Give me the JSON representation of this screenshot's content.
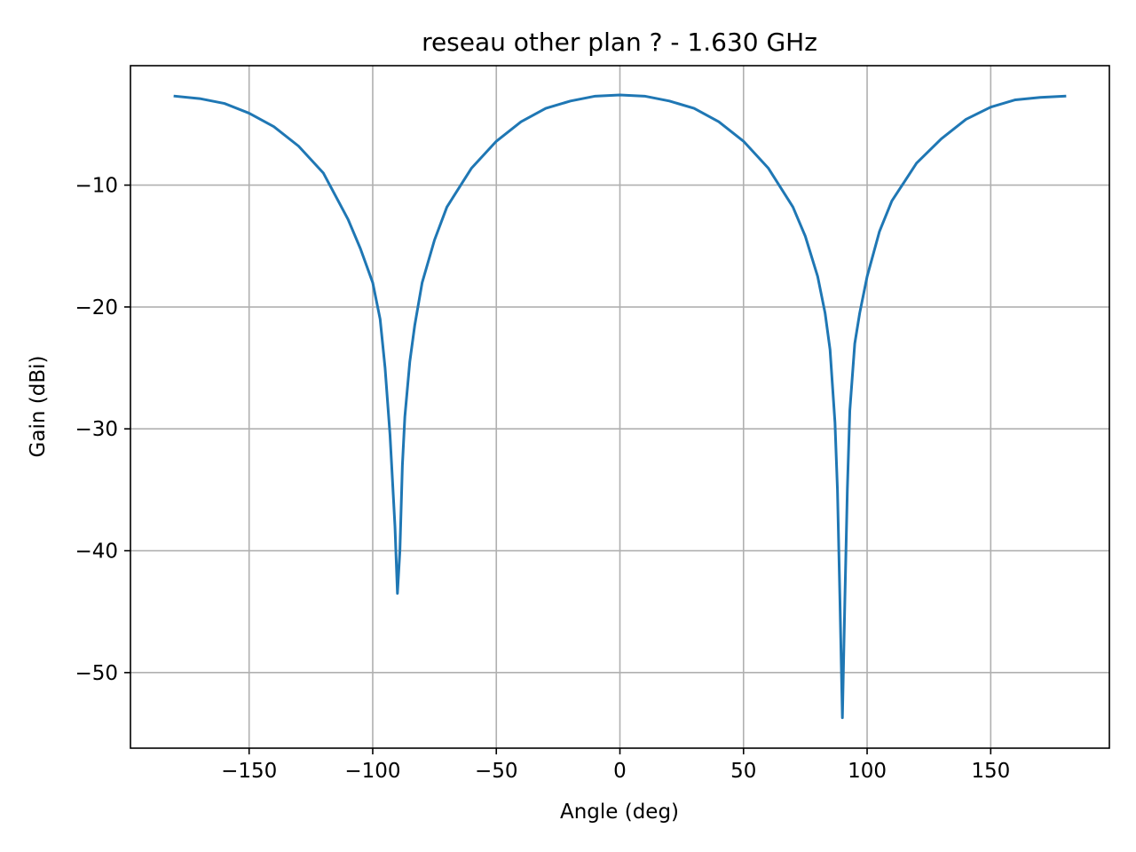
{
  "chart_data": {
    "type": "line",
    "title": "reseau other plan ? - 1.630 GHz",
    "xlabel": "Angle (deg)",
    "ylabel": "Gain (dBi)",
    "xlim": [
      -198,
      198
    ],
    "ylim": [
      -56.2,
      -0.2
    ],
    "x_ticks": [
      -150,
      -100,
      -50,
      0,
      50,
      100,
      150
    ],
    "x_tick_labels": [
      "−150",
      "−100",
      "−50",
      "0",
      "50",
      "100",
      "150"
    ],
    "y_ticks": [
      -10,
      -20,
      -30,
      -40,
      -50
    ],
    "y_tick_labels": [
      "−10",
      "−20",
      "−30",
      "−40",
      "−50"
    ],
    "grid": true,
    "legend": "none",
    "series": [
      {
        "color": "#1f77b4",
        "x": [
          -180,
          -170,
          -160,
          -150,
          -140,
          -130,
          -120,
          -110,
          -105,
          -100,
          -97,
          -95,
          -93,
          -91,
          -90,
          -89,
          -88,
          -87,
          -85,
          -83,
          -80,
          -75,
          -70,
          -60,
          -50,
          -40,
          -30,
          -20,
          -10,
          0,
          10,
          20,
          30,
          40,
          50,
          60,
          70,
          75,
          80,
          83,
          85,
          87,
          88,
          89,
          90,
          91,
          92,
          93,
          95,
          97,
          100,
          105,
          110,
          120,
          130,
          140,
          150,
          160,
          170,
          180
        ],
        "y": [
          -2.7,
          -2.9,
          -3.3,
          -4.1,
          -5.2,
          -6.8,
          -9.0,
          -12.8,
          -15.2,
          -18.0,
          -21.0,
          -25.0,
          -30.5,
          -38.0,
          -43.5,
          -40.0,
          -33.0,
          -29.0,
          -24.5,
          -21.5,
          -18.0,
          -14.5,
          -11.8,
          -8.6,
          -6.4,
          -4.8,
          -3.7,
          -3.1,
          -2.7,
          -2.6,
          -2.7,
          -3.1,
          -3.7,
          -4.8,
          -6.4,
          -8.6,
          -11.8,
          -14.2,
          -17.5,
          -20.5,
          -23.5,
          -29.5,
          -35.0,
          -44.0,
          -53.7,
          -44.0,
          -35.0,
          -28.5,
          -23.0,
          -20.5,
          -17.5,
          -13.8,
          -11.3,
          -8.2,
          -6.2,
          -4.6,
          -3.6,
          -3.0,
          -2.8,
          -2.7
        ]
      }
    ]
  }
}
